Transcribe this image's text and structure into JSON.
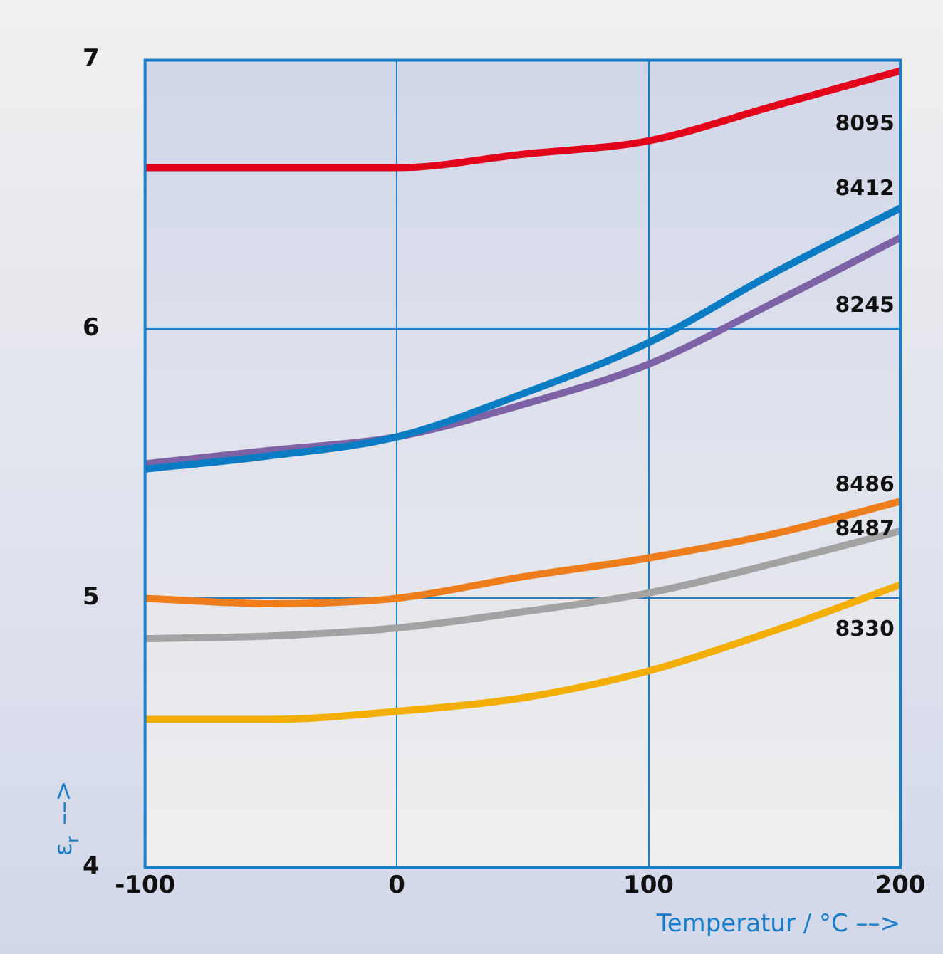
{
  "chart_data": {
    "type": "line",
    "xlabel": "Temperatur / °C ––>",
    "ylabel": "ε$_{r}$ ––>",
    "x": [
      -100,
      -50,
      0,
      50,
      100,
      150,
      200
    ],
    "xlim": [
      -100,
      200
    ],
    "xticks": [
      -100,
      0,
      100,
      200
    ],
    "ylim": [
      4,
      7
    ],
    "yticks": [
      4,
      5,
      6,
      7
    ],
    "grid": true,
    "legend": false,
    "marker": "none",
    "line_style": "solid",
    "series": [
      {
        "name": "8095",
        "color": "#e2001a",
        "values": [
          6.6,
          6.6,
          6.6,
          6.65,
          6.7,
          6.83,
          6.96
        ]
      },
      {
        "name": "8412",
        "color": "#0a7cc4",
        "values": [
          5.48,
          5.53,
          5.6,
          5.76,
          5.95,
          6.21,
          6.45
        ]
      },
      {
        "name": "8245",
        "color": "#7d62a6",
        "values": [
          5.5,
          5.55,
          5.6,
          5.72,
          5.87,
          6.1,
          6.34
        ]
      },
      {
        "name": "8486",
        "color": "#ee7d1c",
        "values": [
          5.0,
          4.98,
          5.0,
          5.08,
          5.15,
          5.24,
          5.36
        ]
      },
      {
        "name": "8487",
        "color": "#a3a3a3",
        "values": [
          4.85,
          4.86,
          4.89,
          4.95,
          5.02,
          5.13,
          5.25
        ]
      },
      {
        "name": "8330",
        "color": "#f3ae00",
        "values": [
          4.55,
          4.55,
          4.58,
          4.63,
          4.73,
          4.88,
          5.05
        ]
      }
    ]
  }
}
